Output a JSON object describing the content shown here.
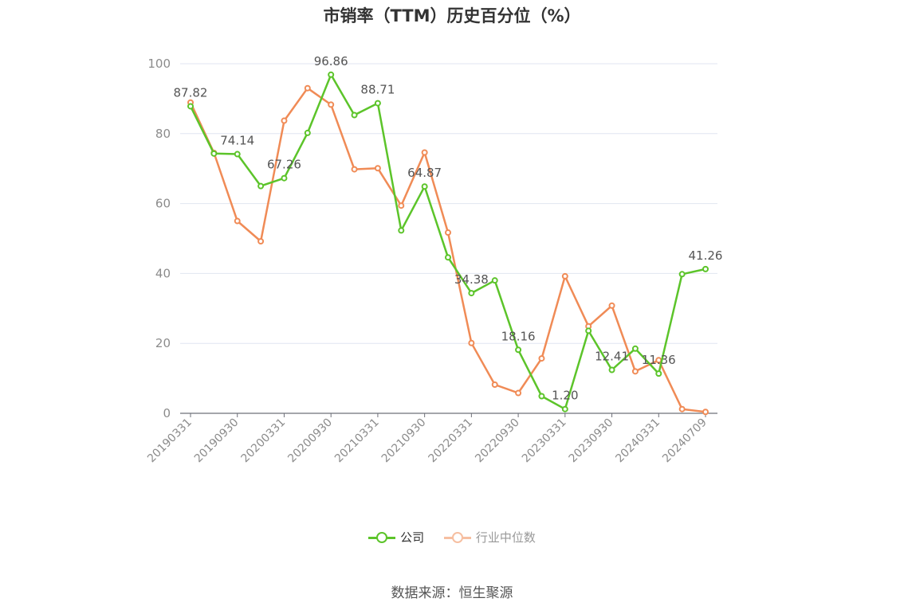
{
  "chart_data": {
    "type": "line",
    "title": "市销率（TTM）历史百分位（%）",
    "xlabel": "",
    "ylabel": "",
    "ylim": [
      0,
      100
    ],
    "yticks": [
      0,
      20,
      40,
      60,
      80,
      100
    ],
    "grid": true,
    "legend_position": "bottom-center",
    "x": [
      "20190331",
      "20190630",
      "20190930",
      "20191231",
      "20200331",
      "20200630",
      "20200930",
      "20201231",
      "20210331",
      "20210630",
      "20210930",
      "20211231",
      "20220331",
      "20220630",
      "20220930",
      "20221231",
      "20230331",
      "20230630",
      "20230930",
      "20231231",
      "20240331",
      "20240630",
      "20240709"
    ],
    "x_tick_labels": [
      "20190331",
      "20190930",
      "20200331",
      "20200930",
      "20210331",
      "20210930",
      "20220331",
      "20220930",
      "20230331",
      "20230930",
      "20240331",
      "20240709"
    ],
    "series": [
      {
        "name": "公司",
        "color": "#5cc42a",
        "values": [
          87.82,
          74.3,
          74.14,
          65.0,
          67.26,
          80.2,
          96.86,
          85.3,
          88.71,
          52.3,
          64.87,
          44.6,
          34.38,
          38.0,
          18.16,
          4.9,
          1.2,
          23.6,
          12.41,
          18.5,
          11.36,
          39.8,
          41.26
        ],
        "labels": {
          "0": "87.82",
          "2": "74.14",
          "4": "67.26",
          "6": "96.86",
          "8": "88.71",
          "10": "64.87",
          "12": "34.38",
          "14": "18.16",
          "16": "1.20",
          "18": "12.41",
          "20": "11.36",
          "22": "41.26"
        }
      },
      {
        "name": "行业中位数",
        "color": "#f08b56",
        "values": [
          88.9,
          74.5,
          55.0,
          49.2,
          83.7,
          93.0,
          88.3,
          69.8,
          70.1,
          59.4,
          74.6,
          51.7,
          20.1,
          8.2,
          5.8,
          15.7,
          39.2,
          24.9,
          30.8,
          12.0,
          15.2,
          1.2,
          0.4
        ]
      }
    ]
  },
  "source": "数据来源：恒生聚源"
}
